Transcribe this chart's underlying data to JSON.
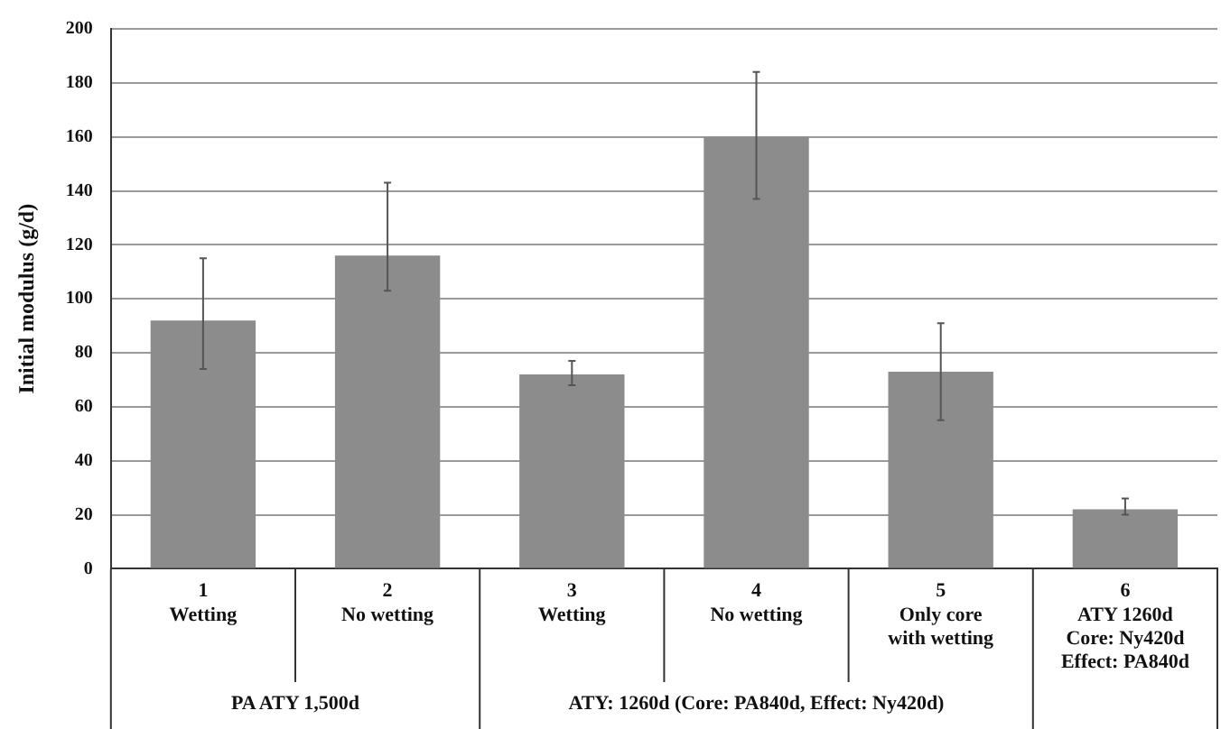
{
  "chart_data": {
    "type": "bar",
    "ylabel": "Initial modulus (g/d)",
    "categories": [
      "1\nWetting",
      "2\nNo wetting",
      "3\nWetting",
      "4\nNo wetting",
      "5\nOnly core\nwith wetting",
      "6\nATY 1260d\nCore: Ny420d\nEffect: PA840d"
    ],
    "values": [
      92,
      116,
      72,
      160,
      73,
      22
    ],
    "errors": [
      [
        74,
        115
      ],
      [
        103,
        143
      ],
      [
        68,
        77
      ],
      [
        137,
        184
      ],
      [
        55,
        91
      ],
      [
        20,
        26
      ]
    ],
    "color": "#8c8c8c",
    "ylim": [
      0,
      200
    ],
    "yticks": [
      0,
      20,
      40,
      60,
      80,
      100,
      120,
      140,
      160,
      180,
      200
    ],
    "grid": "y",
    "legend": false,
    "annotations": [
      "PA ATY 1,500d",
      "ATY: 1260d (Core: PA840d, Effect: Ny420d)"
    ]
  }
}
